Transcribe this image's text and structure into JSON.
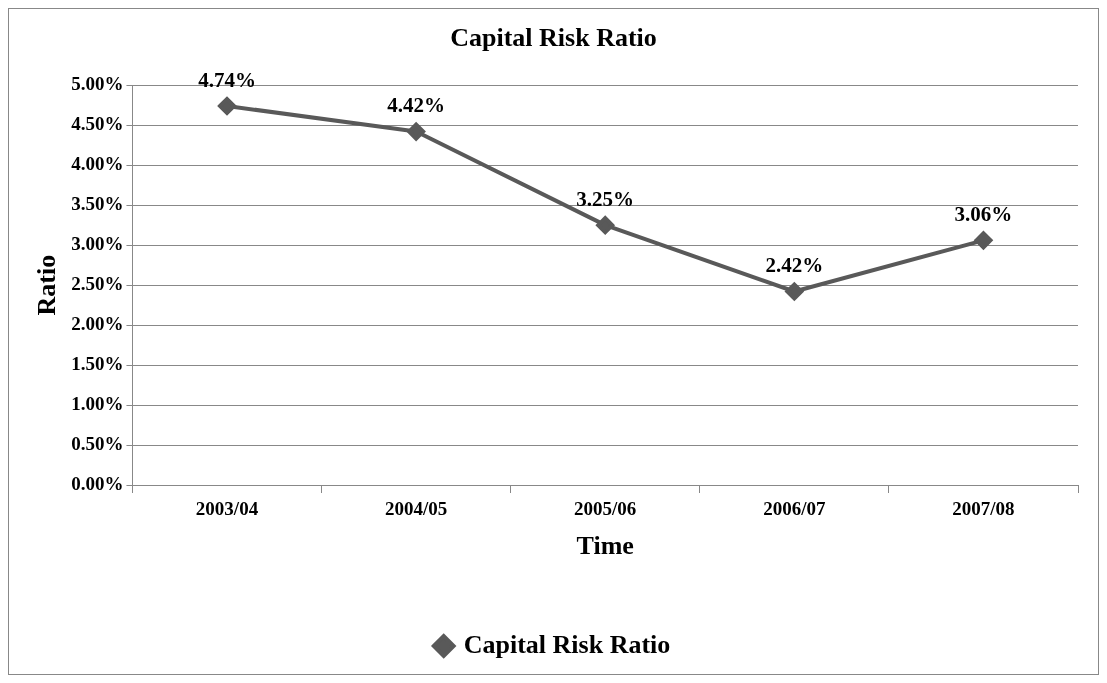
{
  "chart_data": {
    "type": "line",
    "title": "Capital Risk Ratio",
    "xlabel": "Time",
    "ylabel": "Ratio",
    "categories": [
      "2003/04",
      "2004/05",
      "2005/06",
      "2006/07",
      "2007/08"
    ],
    "series": [
      {
        "name": "Capital Risk Ratio",
        "color": "#595959",
        "values": [
          4.74,
          4.42,
          3.25,
          2.42,
          3.06
        ],
        "value_labels": [
          "4.74%",
          "4.42%",
          "3.25%",
          "2.42%",
          "3.06%"
        ]
      }
    ],
    "ylim": [
      0,
      5
    ],
    "yticks": [
      {
        "value": 0,
        "label": "0.00%"
      },
      {
        "value": 0.5,
        "label": "0.50%"
      },
      {
        "value": 1,
        "label": "1.00%"
      },
      {
        "value": 1.5,
        "label": "1.50%"
      },
      {
        "value": 2,
        "label": "2.00%"
      },
      {
        "value": 2.5,
        "label": "2.50%"
      },
      {
        "value": 3,
        "label": "3.00%"
      },
      {
        "value": 3.5,
        "label": "3.50%"
      },
      {
        "value": 4,
        "label": "4.00%"
      },
      {
        "value": 4.5,
        "label": "4.50%"
      },
      {
        "value": 5,
        "label": "5.00%"
      }
    ],
    "grid": "y",
    "legend": "bottom",
    "marker": "diamond",
    "line_style": "solid"
  }
}
